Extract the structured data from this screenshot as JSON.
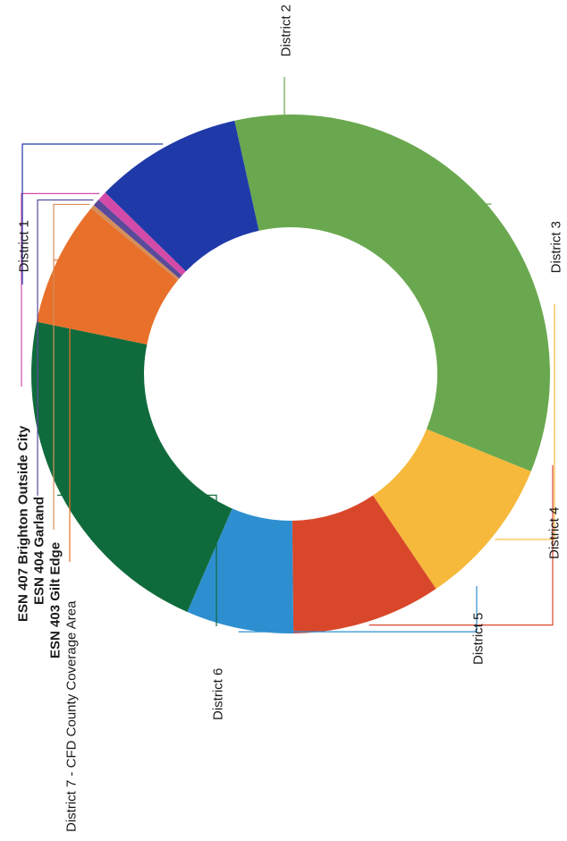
{
  "chart_data": {
    "type": "pie",
    "style": "donut",
    "orientation": "rotated 90 degrees counter-clockwise",
    "slices": [
      {
        "label": "District 2",
        "value": 34.6,
        "color": "#6aa84f"
      },
      {
        "label": "District 3",
        "value": 9.4,
        "color": "#f6b93b"
      },
      {
        "label": "District 4",
        "value": 9.3,
        "color": "#d9472b"
      },
      {
        "label": "District 5",
        "value": 6.7,
        "color": "#2e8fd0"
      },
      {
        "label": "District 6",
        "value": 21.7,
        "color": "#0f6b3c"
      },
      {
        "label": "District 7 - CFD County Coverage Area",
        "value": 7.8,
        "color": "#e8702a"
      },
      {
        "label": "ESN 403 Gilt Edge",
        "value": 0.25,
        "color": "#d58e5a"
      },
      {
        "label": "ESN 404 Garland",
        "value": 0.45,
        "color": "#5a4a9a"
      },
      {
        "label": "ESN 407 Brighton Outside City",
        "value": 0.6,
        "color": "#d44aa8"
      },
      {
        "label": "District 1",
        "value": 9.2,
        "color": "#1f3aa8"
      }
    ]
  }
}
